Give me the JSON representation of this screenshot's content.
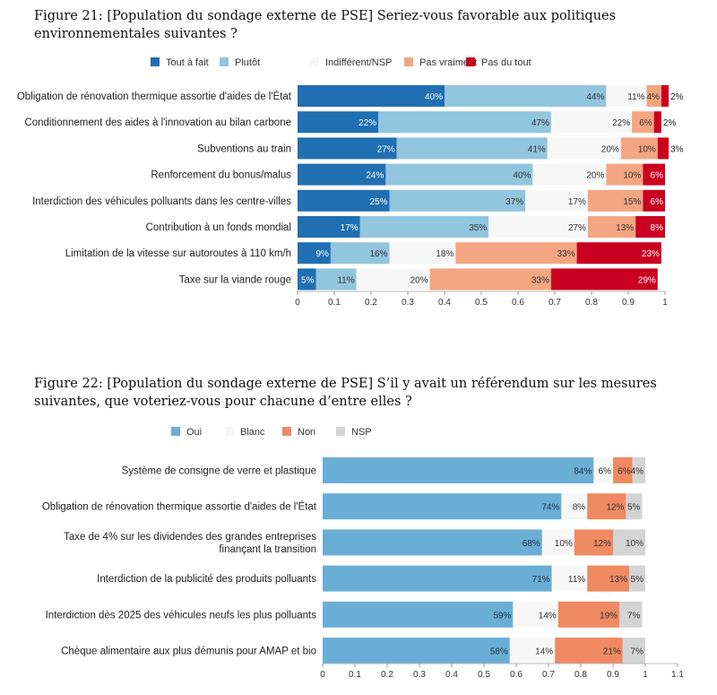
{
  "chart_data": [
    {
      "type": "bar",
      "orientation": "horizontal",
      "stacked": true,
      "figure_label": "Figure 21:",
      "title": "[Population du sondage externe de PSE] Seriez-vous favorable aux politiques environnementales suivantes ?",
      "title_display": "Figure 21:  [Population du sondage externe de PSE] Seriez-vous favorable aux politiques environnementales suivantes ?",
      "categories": [
        "Obligation de rénovation thermique assortie d'aides de l'État",
        "Conditionnement des aides à l'innovation au bilan carbone",
        "Subventions au train",
        "Renforcement du bonus/malus",
        "Interdiction des véhicules polluants dans les centre-villes",
        "Contribution à un fonds mondial",
        "Limitation de la vitesse sur autoroutes à 110 km/h",
        "Taxe sur la viande rouge"
      ],
      "series": [
        {
          "name": "Tout à fait",
          "color": "#1f6fb2",
          "values": [
            0.4,
            0.22,
            0.27,
            0.24,
            0.25,
            0.17,
            0.09,
            0.05
          ],
          "labels": [
            "40%",
            "22%",
            "27%",
            "24%",
            "25%",
            "17%",
            "9%",
            "5%"
          ]
        },
        {
          "name": "Plutôt",
          "color": "#92c5de",
          "values": [
            0.44,
            0.47,
            0.41,
            0.4,
            0.37,
            0.35,
            0.16,
            0.11
          ],
          "labels": [
            "44%",
            "47%",
            "41%",
            "40%",
            "37%",
            "35%",
            "16%",
            "11%"
          ]
        },
        {
          "name": "Indifférent/NSP",
          "color": "#f7f7f7",
          "values": [
            0.11,
            0.22,
            0.2,
            0.2,
            0.17,
            0.27,
            0.18,
            0.2
          ],
          "labels": [
            "11%",
            "22%",
            "20%",
            "20%",
            "17%",
            "27%",
            "18%",
            "20%"
          ]
        },
        {
          "name": "Pas vraiment",
          "color": "#f4a582",
          "values": [
            0.04,
            0.06,
            0.1,
            0.1,
            0.15,
            0.13,
            0.33,
            0.33
          ],
          "labels": [
            "4%",
            "6%",
            "10%",
            "10%",
            "15%",
            "13%",
            "33%",
            "33%"
          ]
        },
        {
          "name": "Pas du tout",
          "color": "#ca0020",
          "values": [
            0.02,
            0.02,
            0.03,
            0.06,
            0.06,
            0.08,
            0.23,
            0.29
          ],
          "labels": [
            "2%",
            "2%",
            "3%",
            "6%",
            "6%",
            "8%",
            "23%",
            "29%"
          ]
        }
      ],
      "xlim": [
        0,
        1
      ],
      "xticks": [
        "0",
        "0.1",
        "0.2",
        "0.3",
        "0.4",
        "0.5",
        "0.6",
        "0.7",
        "0.8",
        "0.9",
        "1"
      ],
      "legend_position": "top",
      "xlabel": "",
      "ylabel": ""
    },
    {
      "type": "bar",
      "orientation": "horizontal",
      "stacked": true,
      "figure_label": "Figure 22:",
      "title": "[Population du sondage externe de PSE] S'il y avait un référendum sur les mesures suivantes, que voteriez-vous pour chacune d'entre elles ?",
      "title_display": "Figure 22:  [Population du sondage externe de PSE] S’il y avait un référendum sur les mesures suivantes, que voteriez-vous pour chacune d’entre elles ?",
      "categories": [
        [
          "Système de consigne de verre et plastique"
        ],
        [
          "Obligation de rénovation thermique assortie d'aides de l'État"
        ],
        [
          "Taxe de 4% sur les dividendes des grandes entreprises",
          "finançant la transition"
        ],
        [
          "Interdiction de la publicité des produits polluants"
        ],
        [
          "Interdiction dès 2025 des véhicules neufs les plus polluants"
        ],
        [
          "Chèque alimentaire aux plus démunis pour AMAP et bio"
        ]
      ],
      "series": [
        {
          "name": "Oui",
          "color": "#6aaed6",
          "values": [
            0.84,
            0.74,
            0.68,
            0.71,
            0.59,
            0.58
          ],
          "labels": [
            "84%",
            "74%",
            "68%",
            "71%",
            "59%",
            "58%"
          ]
        },
        {
          "name": "Blanc",
          "color": "#f7f7f7",
          "values": [
            0.06,
            0.08,
            0.1,
            0.11,
            0.14,
            0.14
          ],
          "labels": [
            "6%",
            "8%",
            "10%",
            "11%",
            "14%",
            "14%"
          ]
        },
        {
          "name": "Non",
          "color": "#ef8a62",
          "values": [
            0.06,
            0.12,
            0.12,
            0.13,
            0.19,
            0.21
          ],
          "labels": [
            "6%",
            "12%",
            "12%",
            "13%",
            "19%",
            "21%"
          ]
        },
        {
          "name": "NSP",
          "color": "#d4d4d4",
          "values": [
            0.04,
            0.05,
            0.1,
            0.05,
            0.07,
            0.07
          ],
          "labels": [
            "4%",
            "5%",
            "10%",
            "5%",
            "7%",
            "7%"
          ]
        }
      ],
      "xlim": [
        0,
        1.1
      ],
      "xticks": [
        "0",
        "0.1",
        "0.2",
        "0.3",
        "0.4",
        "0.5",
        "0.6",
        "0.7",
        "0.8",
        "0.9",
        "1",
        "1.1"
      ],
      "legend_position": "top",
      "xlabel": "",
      "ylabel": ""
    }
  ]
}
